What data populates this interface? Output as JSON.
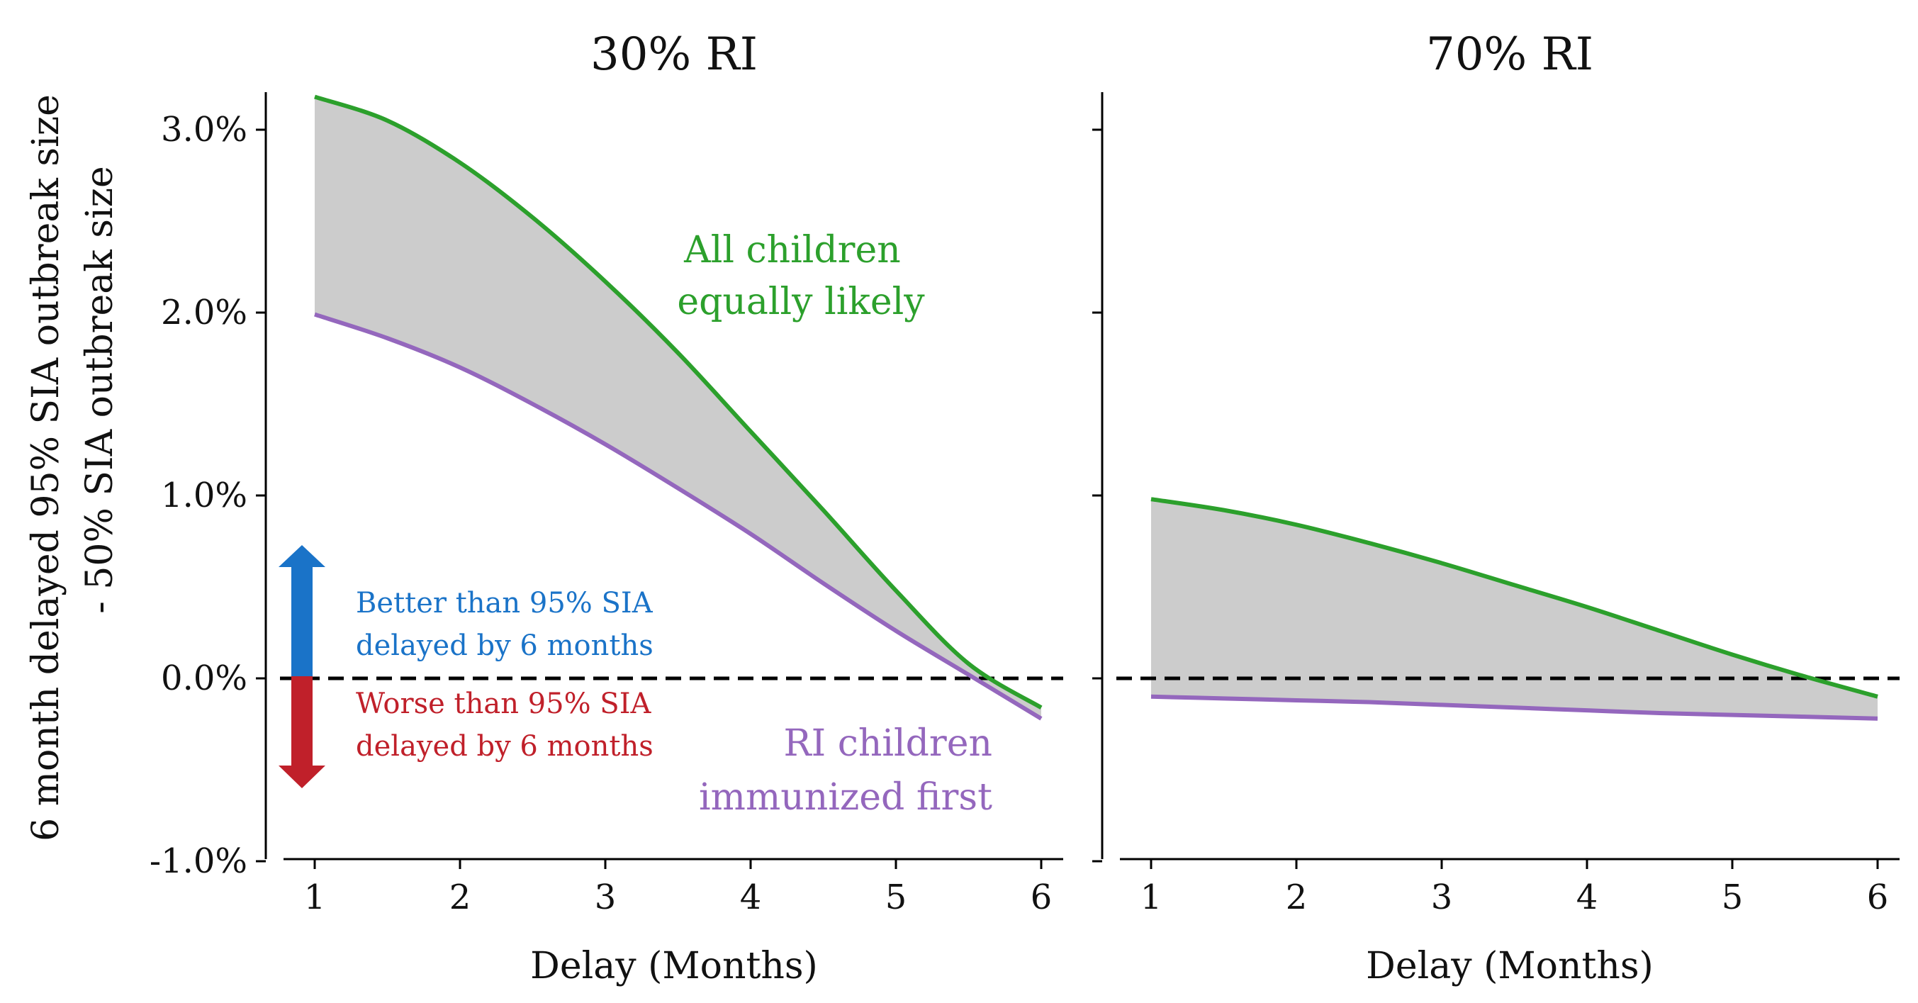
{
  "ylabel_line1": "6 month delayed 95% SIA outbreak size",
  "ylabel_line2": "- 50% SIA outbreak size",
  "colors": {
    "green": "#2ca02c",
    "purple": "#9467bd",
    "fill": "#cccccc",
    "blue": "#1a73c8",
    "red": "#c0202a"
  },
  "chart_data": [
    {
      "type": "area",
      "title": "30% RI",
      "xlabel": "Delay (Months)",
      "xlim": [
        0.8,
        6.2
      ],
      "ylim": [
        -1.0,
        3.2
      ],
      "x_ticks": [
        "1",
        "2",
        "3",
        "4",
        "5",
        "6"
      ],
      "y_ticks": [
        "3.0%",
        "2.0%",
        "1.0%",
        "0.0%",
        "-1.0%"
      ],
      "y_tick_values": [
        3.0,
        2.0,
        1.0,
        0.0,
        -1.0
      ],
      "x": [
        1,
        1.5,
        2,
        2.5,
        3,
        3.5,
        4,
        4.5,
        5,
        5.5,
        6
      ],
      "series": [
        {
          "name": "All children equally likely",
          "values": [
            3.18,
            3.05,
            2.82,
            2.52,
            2.17,
            1.78,
            1.35,
            0.92,
            0.48,
            0.08,
            -0.16
          ]
        },
        {
          "name": "RI children immunized first",
          "values": [
            1.99,
            1.86,
            1.7,
            1.5,
            1.28,
            1.04,
            0.79,
            0.52,
            0.26,
            0.02,
            -0.22
          ]
        }
      ],
      "baseline": 0.0,
      "label_green": [
        "All children",
        "equally likely"
      ],
      "label_purple": [
        "RI children",
        "immunized first"
      ],
      "better_text": [
        "Better than 95% SIA",
        "delayed by 6 months"
      ],
      "worse_text": [
        "Worse than 95% SIA",
        "delayed by 6 months"
      ]
    },
    {
      "type": "area",
      "title": "70% RI",
      "xlabel": "Delay (Months)",
      "xlim": [
        0.8,
        6.2
      ],
      "ylim": [
        -1.0,
        3.2
      ],
      "x_ticks": [
        "1",
        "2",
        "3",
        "4",
        "5",
        "6"
      ],
      "x": [
        1,
        1.5,
        2,
        2.5,
        3,
        3.5,
        4,
        4.5,
        5,
        5.5,
        6
      ],
      "series": [
        {
          "name": "All children equally likely",
          "values": [
            0.98,
            0.92,
            0.84,
            0.74,
            0.63,
            0.51,
            0.39,
            0.26,
            0.13,
            0.01,
            -0.1
          ]
        },
        {
          "name": "RI children immunized first",
          "values": [
            -0.1,
            -0.11,
            -0.12,
            -0.13,
            -0.145,
            -0.16,
            -0.175,
            -0.19,
            -0.2,
            -0.21,
            -0.22
          ]
        }
      ],
      "baseline": 0.0
    }
  ]
}
